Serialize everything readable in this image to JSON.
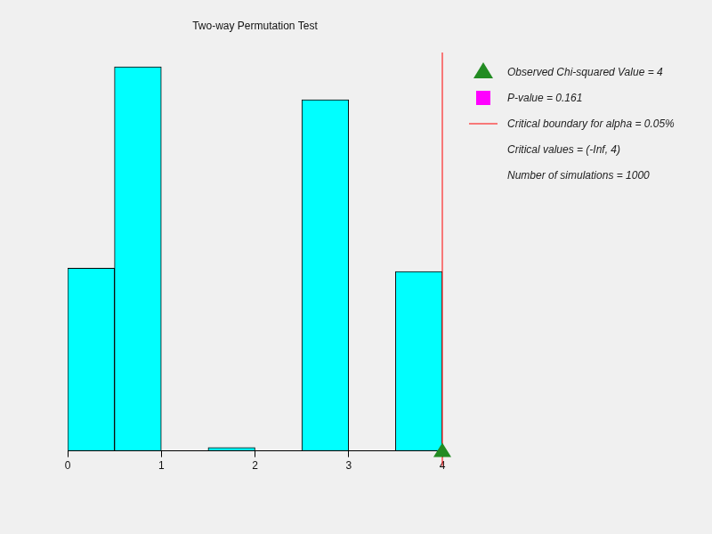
{
  "chart_data": {
    "type": "histogram",
    "title": "Two-way Permutation Test",
    "bins": [
      0,
      0.5,
      1,
      1.5,
      2,
      2.5,
      3,
      3.5,
      4
    ],
    "values": [
      166,
      349,
      0,
      3,
      0,
      319,
      0,
      163
    ],
    "color": "#00ffff",
    "xlim": [
      0,
      4
    ],
    "xticks": [
      0,
      1,
      2,
      3,
      4
    ],
    "ylim": [
      0,
      362
    ],
    "tick_labels": "x",
    "grid": false,
    "observed": 4,
    "critical": 4,
    "legend_items": [
      {
        "label": "Observed Chi-squared Value = 4",
        "marker": "triangle",
        "color": "#228b22"
      },
      {
        "label": "P-value = 0.161",
        "marker": "square",
        "color": "#ff00ff"
      },
      {
        "label": "Critical boundary for alpha = 0.05%",
        "marker": "line",
        "color": "#ff0000"
      },
      {
        "label": "Critical values = (-Inf, 4)"
      },
      {
        "label": "Number of simulations = 1000"
      }
    ]
  }
}
